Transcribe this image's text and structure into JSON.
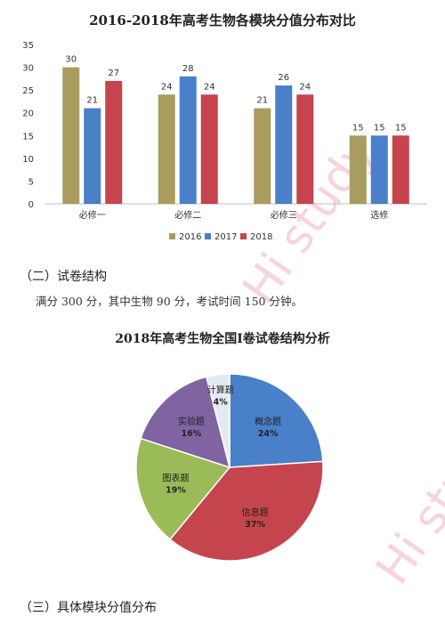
{
  "colors": {
    "series_2016": "#a89c5e",
    "series_2017": "#4a7fc9",
    "series_2018": "#c6444d",
    "pie_concept": "#4a7fc9",
    "pie_info": "#c6444d",
    "pie_chart_q": "#9bbb59",
    "pie_experiment": "#8064a2",
    "pie_calc": "#e4eaf4",
    "axis": "#bfbfbf"
  },
  "watermark_text": "Hi study",
  "section2": {
    "heading": "（二）试卷结构",
    "body": "满分 300 分，其中生物 90 分，考试时间 150 分钟。"
  },
  "section3": {
    "heading": "（三）具体模块分值分布"
  },
  "chart_data": [
    {
      "type": "bar",
      "title": "2016-2018年高考生物各模块分值分布对比",
      "categories": [
        "必修一",
        "必修二",
        "必修三",
        "选修"
      ],
      "series": [
        {
          "name": "2016",
          "values": [
            30,
            24,
            21,
            15
          ]
        },
        {
          "name": "2017",
          "values": [
            21,
            28,
            26,
            15
          ]
        },
        {
          "name": "2018",
          "values": [
            27,
            24,
            24,
            15
          ]
        }
      ],
      "ylim": [
        0,
        35
      ],
      "yticks": [
        0,
        5,
        10,
        15,
        20,
        25,
        30,
        35
      ],
      "grid": false,
      "legend": "bottom"
    },
    {
      "type": "pie",
      "title": "2018年高考生物全国Ⅰ卷试卷结构分析",
      "slices": [
        {
          "label": "概念题",
          "value": 24,
          "pct": "24%"
        },
        {
          "label": "信息题",
          "value": 37,
          "pct": "37%"
        },
        {
          "label": "图表题",
          "value": 19,
          "pct": "19%"
        },
        {
          "label": "实验题",
          "value": 16,
          "pct": "16%"
        },
        {
          "label": "计算题",
          "value": 4,
          "pct": "4%"
        }
      ]
    }
  ]
}
